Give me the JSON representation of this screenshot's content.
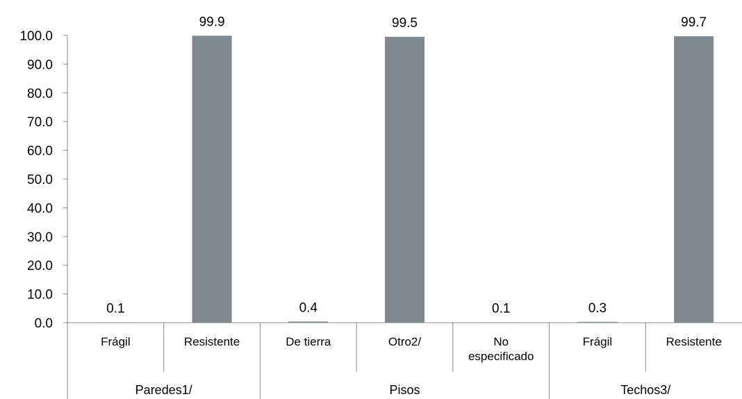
{
  "chart_data": {
    "type": "bar",
    "title": "",
    "xlabel": "",
    "ylabel": "",
    "ylim": [
      0,
      100
    ],
    "y_ticks": [
      "0.0",
      "10.0",
      "20.0",
      "30.0",
      "40.0",
      "50.0",
      "60.0",
      "70.0",
      "80.0",
      "90.0",
      "100.0"
    ],
    "grid": false,
    "legend": "none",
    "bar_color": "#7f8a8f",
    "groups": [
      {
        "label": "Paredes1/",
        "categories": [
          {
            "label": [
              "Frágil"
            ],
            "value": 0.1,
            "value_label": "0.1"
          },
          {
            "label": [
              "Resistente"
            ],
            "value": 99.9,
            "value_label": "99.9"
          }
        ]
      },
      {
        "label": "Pisos",
        "categories": [
          {
            "label": [
              "De tierra"
            ],
            "value": 0.4,
            "value_label": "0.4"
          },
          {
            "label": [
              "Otro2/"
            ],
            "value": 99.5,
            "value_label": "99.5"
          },
          {
            "label": [
              "No",
              "especificado"
            ],
            "value": 0.1,
            "value_label": "0.1"
          }
        ]
      },
      {
        "label": "Techos3/",
        "categories": [
          {
            "label": [
              "Frágil"
            ],
            "value": 0.3,
            "value_label": "0.3"
          },
          {
            "label": [
              "Resistente"
            ],
            "value": 99.7,
            "value_label": "99.7"
          }
        ]
      }
    ]
  }
}
